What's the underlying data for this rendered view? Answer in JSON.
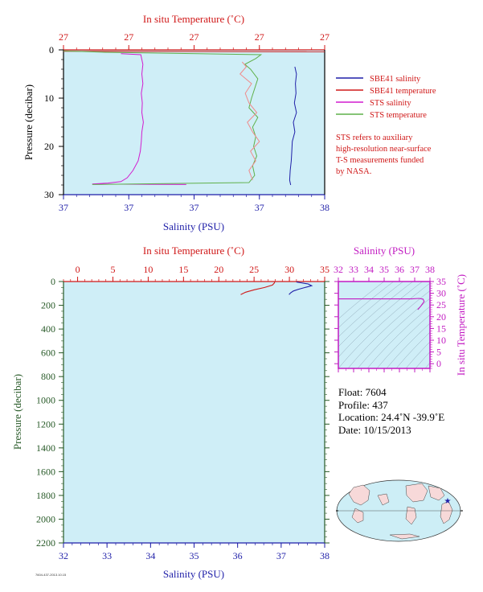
{
  "colors": {
    "plot_bg": "#cfeef7",
    "salinity": "#1f1fa8",
    "temperature": "#d01818",
    "sts_salinity": "#d21ccf",
    "sts_temperature": "#5fb04a",
    "pressure_axis_top": "#000000",
    "pressure_axis_bottom": "#285a28",
    "ts_axis": "#c21cc2"
  },
  "chart_data": [
    {
      "type": "line",
      "panel": "near-surface profile",
      "top_axis_label": "In situ Temperature (˚C)",
      "top_tick_labels": [
        "27",
        "27",
        "27",
        "27",
        "27"
      ],
      "bottom_axis_label": "Salinity (PSU)",
      "bottom_tick_labels": [
        "37",
        "37",
        "37",
        "37",
        "38"
      ],
      "ylabel": "Pressure (decibar)",
      "y_tick_labels": [
        "0",
        "10",
        "20",
        "30"
      ],
      "ylim": [
        30,
        0
      ],
      "xlim": [
        0,
        5
      ],
      "grid": false,
      "legend": [
        {
          "label": "SBE41 salinity",
          "color": "#1f1fa8"
        },
        {
          "label": "SBE41 temperature",
          "color": "#d01818"
        },
        {
          "label": "STS salinity",
          "color": "#d21ccf"
        },
        {
          "label": "STS temperature",
          "color": "#5fb04a"
        }
      ],
      "note": [
        "STS refers to auxiliary",
        "high-resolution near-surface",
        "T-S measurements funded",
        "by NASA."
      ],
      "series": [
        {
          "name": "SBE41 salinity",
          "y": [
            3.5,
            5,
            7,
            9,
            11,
            13,
            15,
            17,
            19,
            21,
            23,
            25,
            27,
            28
          ],
          "x": [
            4.43,
            4.46,
            4.44,
            4.45,
            4.42,
            4.46,
            4.4,
            4.43,
            4.38,
            4.37,
            4.36,
            4.34,
            4.33,
            4.35
          ]
        },
        {
          "name": "SBE41 temperature",
          "y": [
            0.3,
            0.4
          ],
          "x": [
            0.0,
            5.0
          ]
        },
        {
          "name": "STS salinity",
          "y": [
            0.8,
            1.0,
            3,
            5,
            7,
            9,
            11,
            13,
            15,
            17,
            19,
            21,
            23,
            25,
            26.5,
            27.3,
            27.6,
            27.8,
            27.9
          ],
          "x": [
            1.1,
            1.48,
            1.52,
            1.5,
            1.52,
            1.49,
            1.51,
            1.5,
            1.53,
            1.5,
            1.49,
            1.47,
            1.43,
            1.33,
            1.22,
            1.1,
            0.85,
            0.55,
            2.35
          ]
        },
        {
          "name": "STS temperature",
          "y": [
            0.2,
            0.5,
            1.0,
            1.8,
            3,
            4,
            6,
            8,
            10,
            12,
            14,
            16,
            18,
            20,
            22,
            24,
            26,
            27.5,
            27.9
          ],
          "x": [
            0.0,
            0.8,
            3.78,
            3.68,
            3.47,
            3.58,
            3.72,
            3.66,
            3.6,
            3.55,
            3.72,
            3.62,
            3.68,
            3.64,
            3.7,
            3.62,
            3.66,
            3.55,
            0.55
          ]
        },
        {
          "name": "STS temperature (alt)",
          "y": [
            2.5,
            3.5,
            5,
            7,
            9,
            11,
            13,
            15,
            17,
            19,
            21,
            23,
            25,
            27
          ],
          "x": [
            3.42,
            3.5,
            3.38,
            3.6,
            3.48,
            3.55,
            3.7,
            3.52,
            3.62,
            3.75,
            3.58,
            3.68,
            3.55,
            3.62
          ]
        }
      ]
    },
    {
      "type": "line",
      "panel": "full profile",
      "top_axis_label": "In situ Temperature (˚C)",
      "top_ticks": [
        0,
        5,
        10,
        15,
        20,
        25,
        30,
        35
      ],
      "bottom_axis_label": "Salinity (PSU)",
      "bottom_ticks": [
        32,
        33,
        34,
        35,
        36,
        37,
        38
      ],
      "ylabel": "Pressure (decibar)",
      "y_ticks": [
        0,
        200,
        400,
        600,
        800,
        1000,
        1200,
        1400,
        1600,
        1800,
        2000,
        2200
      ],
      "xlim_temperature": [
        -2,
        35
      ],
      "xlim_salinity": [
        32,
        38
      ],
      "ylim": [
        2200,
        0
      ],
      "grid": false,
      "series": [
        {
          "name": "Temperature",
          "axis": "temperature",
          "pressure": [
            4,
            10,
            30,
            50,
            70,
            90,
            110
          ],
          "value": [
            27.9,
            27.9,
            27.6,
            26.5,
            25.0,
            23.8,
            23.1
          ]
        },
        {
          "name": "Salinity",
          "axis": "salinity",
          "pressure": [
            4,
            10,
            20,
            35,
            50,
            65,
            80,
            95,
            110
          ],
          "value": [
            37.35,
            37.45,
            37.62,
            37.7,
            37.55,
            37.4,
            37.28,
            37.22,
            37.18
          ]
        }
      ]
    },
    {
      "type": "line",
      "panel": "T-S diagram",
      "xlabel": "Salinity (PSU)",
      "x_ticks": [
        32,
        33,
        34,
        35,
        36,
        37,
        38
      ],
      "ylabel": "In situ Temperature (˚C)",
      "y_ticks": [
        0,
        5,
        10,
        15,
        20,
        25,
        30,
        35
      ],
      "xlim": [
        32,
        38
      ],
      "ylim": [
        -2,
        35
      ],
      "grid": false,
      "series": [
        {
          "name": "profile",
          "salinity": [
            32.0,
            36.8,
            37.3,
            37.55,
            37.62,
            37.4,
            37.2
          ],
          "temperature": [
            27.6,
            27.6,
            27.8,
            27.5,
            26.5,
            24.5,
            23.0
          ]
        }
      ]
    }
  ],
  "float_info": {
    "float": "Float:  7604",
    "profile": "Profile:  437",
    "location": "Location:  24.4˚N  -39.9˚E",
    "date": "Date:  10/15/2013"
  },
  "footer": "7604-437-2013.10.15"
}
